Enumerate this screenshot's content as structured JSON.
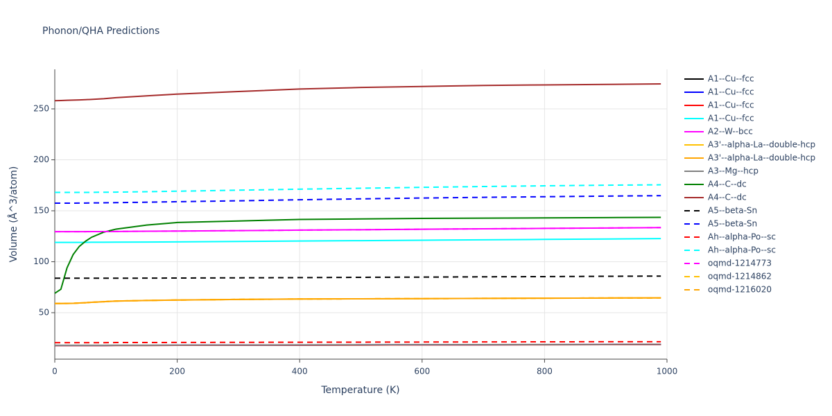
{
  "chart_data": {
    "type": "line",
    "title": "Phonon/QHA Predictions",
    "x_label": "Temperature (K)",
    "y_label": "Volume (Å^3/atom)",
    "xlim": [
      0,
      1000
    ],
    "xticks": [
      0,
      200,
      400,
      600,
      800,
      1000
    ],
    "ylim": [
      4.4,
      288.8
    ],
    "yticks": [
      50,
      100,
      150,
      200,
      250
    ],
    "grid": true,
    "x": [
      0,
      10,
      20,
      30,
      40,
      50,
      60,
      80,
      100,
      150,
      200,
      300,
      400,
      500,
      600,
      700,
      800,
      900,
      990
    ],
    "series": [
      {
        "name": "A1--Cu--fcc",
        "color": "#000000",
        "dash": "solid",
        "values": [
          17.8,
          17.8,
          17.8,
          17.8,
          17.8,
          17.8,
          17.8,
          17.8,
          17.9,
          17.9,
          18,
          18.1,
          18.2,
          18.3,
          18.4,
          18.5,
          18.6,
          18.7,
          18.8
        ]
      },
      {
        "name": "A1--Cu--fcc",
        "color": "#0000ff",
        "dash": "solid",
        "values": [
          17.9,
          17.9,
          17.9,
          17.9,
          17.9,
          17.9,
          17.9,
          17.9,
          18,
          18,
          18.1,
          18.2,
          18.3,
          18.4,
          18.5,
          18.6,
          18.7,
          18.8,
          18.9
        ]
      },
      {
        "name": "A1--Cu--fcc",
        "color": "#ff0000",
        "dash": "solid",
        "values": [
          17.8,
          17.8,
          17.8,
          17.8,
          17.8,
          17.8,
          17.8,
          17.8,
          17.9,
          17.9,
          18,
          18.1,
          18.2,
          18.3,
          18.4,
          18.5,
          18.6,
          18.7,
          18.8
        ]
      },
      {
        "name": "A1--Cu--fcc",
        "color": "#00ffff",
        "dash": "solid",
        "values": [
          119,
          119,
          119,
          119,
          119,
          119,
          119.1,
          119.1,
          119.2,
          119.3,
          119.5,
          119.9,
          120.3,
          120.7,
          121.1,
          121.5,
          121.9,
          122.3,
          122.7
        ]
      },
      {
        "name": "A2--W--bcc",
        "color": "#ff00ff",
        "dash": "solid",
        "values": [
          129.5,
          129.5,
          129.5,
          129.5,
          129.5,
          129.5,
          129.6,
          129.6,
          129.7,
          129.9,
          130.1,
          130.5,
          131,
          131.4,
          131.9,
          132.3,
          132.7,
          133.1,
          133.5
        ]
      },
      {
        "name": "A3'--alpha-La--double-hcp",
        "color": "#ffc000",
        "dash": "solid",
        "values": [
          59,
          59,
          59.1,
          59.2,
          59.5,
          59.8,
          60.2,
          60.8,
          61.4,
          62,
          62.4,
          63,
          63.4,
          63.6,
          63.8,
          64,
          64.2,
          64.4,
          64.5
        ]
      },
      {
        "name": "A3'--alpha-La--double-hcp",
        "color": "#ffa500",
        "dash": "solid",
        "values": [
          59,
          59,
          59.1,
          59.2,
          59.5,
          59.8,
          60.2,
          60.8,
          61.4,
          62,
          62.4,
          63,
          63.4,
          63.6,
          63.8,
          64,
          64.2,
          64.4,
          64.5
        ]
      },
      {
        "name": "A3--Mg--hcp",
        "color": "#808080",
        "dash": "solid",
        "values": [
          18,
          18,
          18,
          18,
          18,
          18,
          18,
          18,
          18.1,
          18.1,
          18.2,
          18.3,
          18.4,
          18.5,
          18.6,
          18.7,
          18.8,
          18.9,
          19
        ]
      },
      {
        "name": "A4--C--dc",
        "color": "#008000",
        "dash": "solid",
        "values": [
          69,
          73,
          94,
          107,
          115,
          120,
          124,
          129,
          132,
          136,
          138.5,
          140,
          141.5,
          142,
          142.5,
          142.8,
          143,
          143.3,
          143.5
        ]
      },
      {
        "name": "A4--C--dc",
        "color": "#a52a2a",
        "dash": "solid",
        "values": [
          258,
          258.2,
          258.4,
          258.6,
          258.8,
          259,
          259.3,
          260,
          261,
          262.8,
          264.5,
          267,
          269.5,
          271,
          272,
          273,
          273.5,
          274,
          274.5
        ]
      },
      {
        "name": "A5--beta-Sn",
        "color": "#000000",
        "dash": "dash",
        "values": [
          83.8,
          83.8,
          83.8,
          83.8,
          83.8,
          83.8,
          83.8,
          83.8,
          83.8,
          83.9,
          84,
          84.2,
          84.4,
          84.7,
          84.9,
          85.2,
          85.4,
          85.7,
          85.9
        ]
      },
      {
        "name": "A5--beta-Sn",
        "color": "#0000ff",
        "dash": "dash",
        "values": [
          157.5,
          157.5,
          157.5,
          157.5,
          157.6,
          157.6,
          157.7,
          157.8,
          158,
          158.4,
          158.9,
          159.8,
          160.8,
          161.7,
          162.5,
          163.2,
          163.8,
          164.4,
          164.8
        ]
      },
      {
        "name": "Ah--alpha-Po--sc",
        "color": "#ff0000",
        "dash": "dash",
        "values": [
          20.6,
          20.6,
          20.6,
          20.6,
          20.6,
          20.6,
          20.6,
          20.6,
          20.7,
          20.7,
          20.8,
          20.9,
          21,
          21.1,
          21.2,
          21.3,
          21.4,
          21.5,
          21.5
        ]
      },
      {
        "name": "Ah--alpha-Po--sc",
        "color": "#00ffff",
        "dash": "dash",
        "values": [
          168,
          168,
          168,
          168,
          168,
          168,
          168.1,
          168.2,
          168.3,
          168.7,
          169.2,
          170.2,
          171.2,
          172.1,
          173,
          173.8,
          174.5,
          175.1,
          175.5
        ]
      },
      {
        "name": "oqmd-1214773",
        "color": "#ff00ff",
        "dash": "dash",
        "values": [
          129.5,
          129.5,
          129.5,
          129.5,
          129.5,
          129.5,
          129.6,
          129.6,
          129.7,
          129.9,
          130.1,
          130.5,
          131,
          131.4,
          131.9,
          132.3,
          132.7,
          133.1,
          133.5
        ]
      },
      {
        "name": "oqmd-1214862",
        "color": "#ffc000",
        "dash": "dash",
        "values": [
          59,
          59,
          59.1,
          59.2,
          59.5,
          59.8,
          60.2,
          60.8,
          61.4,
          62,
          62.4,
          63,
          63.4,
          63.6,
          63.8,
          64,
          64.2,
          64.4,
          64.5
        ]
      },
      {
        "name": "oqmd-1216020",
        "color": "#ffa500",
        "dash": "dash",
        "values": [
          59,
          59,
          59.1,
          59.2,
          59.5,
          59.8,
          60.2,
          60.8,
          61.4,
          62,
          62.4,
          63,
          63.4,
          63.6,
          63.8,
          64,
          64.2,
          64.4,
          64.5
        ]
      }
    ]
  }
}
